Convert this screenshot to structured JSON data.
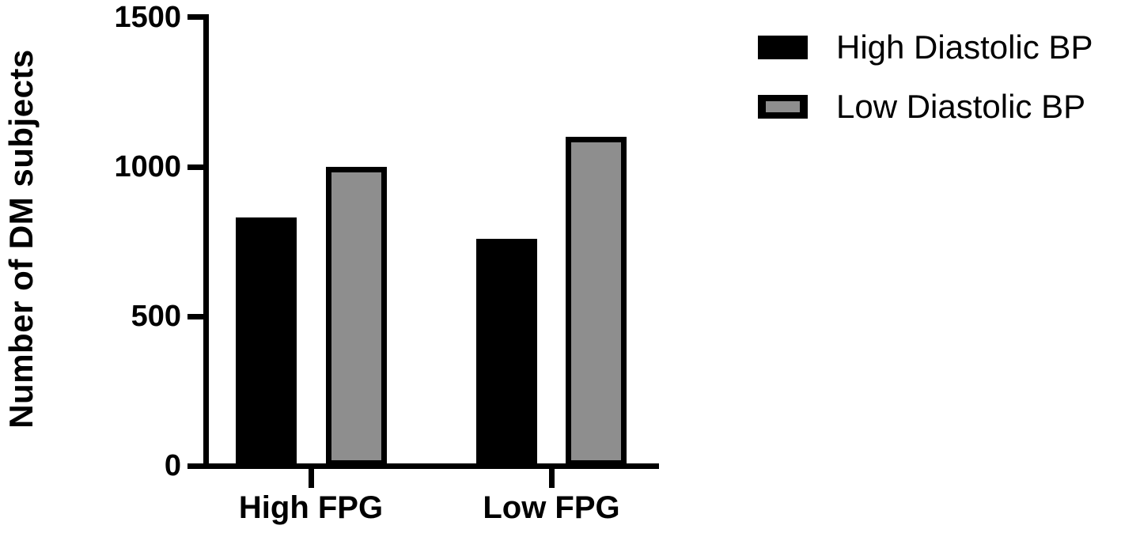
{
  "chart_data": {
    "type": "bar",
    "title": "",
    "categories": [
      "High FPG",
      "Low FPG"
    ],
    "series": [
      {
        "name": "High Diastolic BP",
        "color": "#000000",
        "values": [
          830,
          760
        ]
      },
      {
        "name": "Low Diastolic BP",
        "color": "#8e8e8e",
        "values": [
          1000,
          1100
        ]
      }
    ],
    "xlabel": "",
    "ylabel": "Number of DM subjects",
    "ylim": [
      0,
      1500
    ],
    "yticks": [
      1500,
      1000,
      500,
      0
    ],
    "grid": false,
    "legend_position": "top-right",
    "bar_outline_color": "#000000"
  },
  "colors": {
    "background": "#ffffff",
    "axis": "#000000",
    "series_high_dbp": "#000000",
    "series_low_dbp": "#8e8e8e"
  }
}
